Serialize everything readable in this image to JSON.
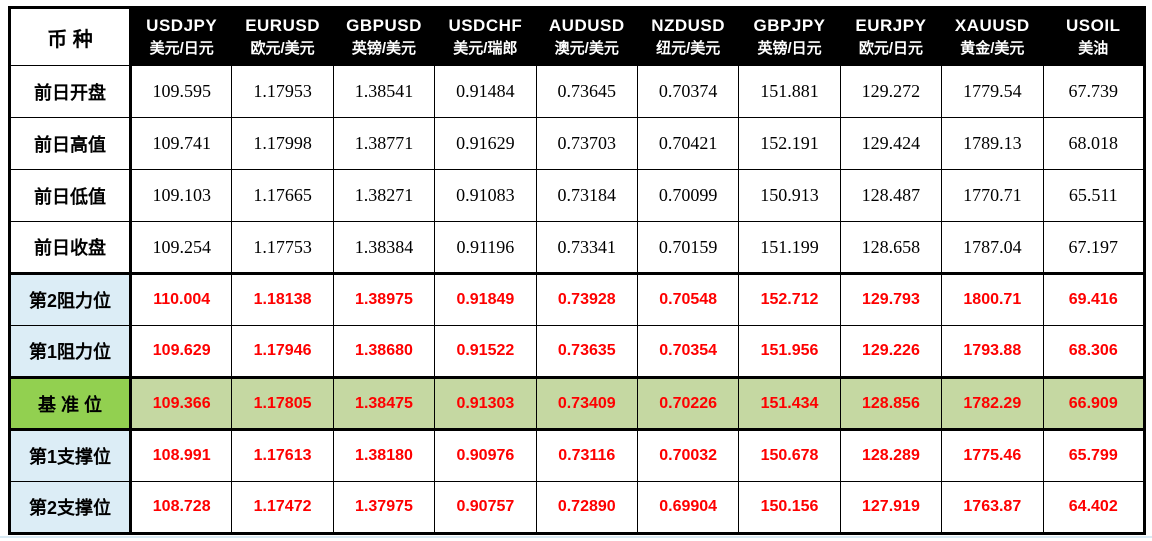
{
  "table": {
    "corner_label": "币 种",
    "columns": [
      {
        "code": "USDJPY",
        "name": "美元/日元"
      },
      {
        "code": "EURUSD",
        "name": "欧元/美元"
      },
      {
        "code": "GBPUSD",
        "name": "英镑/美元"
      },
      {
        "code": "USDCHF",
        "name": "美元/瑞郎"
      },
      {
        "code": "AUDUSD",
        "name": "澳元/美元"
      },
      {
        "code": "NZDUSD",
        "name": "纽元/美元"
      },
      {
        "code": "GBPJPY",
        "name": "英镑/日元"
      },
      {
        "code": "EURJPY",
        "name": "欧元/日元"
      },
      {
        "code": "XAUUSD",
        "name": "黄金/美元"
      },
      {
        "code": "USOIL",
        "name": "美油"
      }
    ],
    "rows": [
      {
        "label": "前日开盘",
        "type": "plain",
        "values": [
          "109.595",
          "1.17953",
          "1.38541",
          "0.91484",
          "0.73645",
          "0.70374",
          "151.881",
          "129.272",
          "1779.54",
          "67.739"
        ]
      },
      {
        "label": "前日高值",
        "type": "plain",
        "values": [
          "109.741",
          "1.17998",
          "1.38771",
          "0.91629",
          "0.73703",
          "0.70421",
          "152.191",
          "129.424",
          "1789.13",
          "68.018"
        ]
      },
      {
        "label": "前日低值",
        "type": "plain",
        "values": [
          "109.103",
          "1.17665",
          "1.38271",
          "0.91083",
          "0.73184",
          "0.70099",
          "150.913",
          "128.487",
          "1770.71",
          "65.511"
        ]
      },
      {
        "label": "前日收盘",
        "type": "plain",
        "values": [
          "109.254",
          "1.17753",
          "1.38384",
          "0.91196",
          "0.73341",
          "0.70159",
          "151.199",
          "128.658",
          "1787.04",
          "67.197"
        ]
      },
      {
        "label": "第2阻力位",
        "type": "level",
        "values": [
          "110.004",
          "1.18138",
          "1.38975",
          "0.91849",
          "0.73928",
          "0.70548",
          "152.712",
          "129.793",
          "1800.71",
          "69.416"
        ]
      },
      {
        "label": "第1阻力位",
        "type": "level",
        "values": [
          "109.629",
          "1.17946",
          "1.38680",
          "0.91522",
          "0.73635",
          "0.70354",
          "151.956",
          "129.226",
          "1793.88",
          "68.306"
        ]
      },
      {
        "label": "基 准 位",
        "type": "pivot",
        "values": [
          "109.366",
          "1.17805",
          "1.38475",
          "0.91303",
          "0.73409",
          "0.70226",
          "151.434",
          "128.856",
          "1782.29",
          "66.909"
        ]
      },
      {
        "label": "第1支撑位",
        "type": "level",
        "values": [
          "108.991",
          "1.17613",
          "1.38180",
          "0.90976",
          "0.73116",
          "0.70032",
          "150.678",
          "128.289",
          "1775.46",
          "65.799"
        ]
      },
      {
        "label": "第2支撑位",
        "type": "level",
        "values": [
          "108.728",
          "1.17472",
          "1.37975",
          "0.90757",
          "0.72890",
          "0.69904",
          "150.156",
          "127.919",
          "1763.87",
          "64.402"
        ]
      }
    ],
    "colors": {
      "header_bg": "#000000",
      "header_text": "#ffffff",
      "level_label_bg": "#dcedf6",
      "pivot_label_bg": "#92d050",
      "pivot_value_bg": "#c5d8a2",
      "value_red": "#fe0000",
      "border": "#000000"
    }
  }
}
